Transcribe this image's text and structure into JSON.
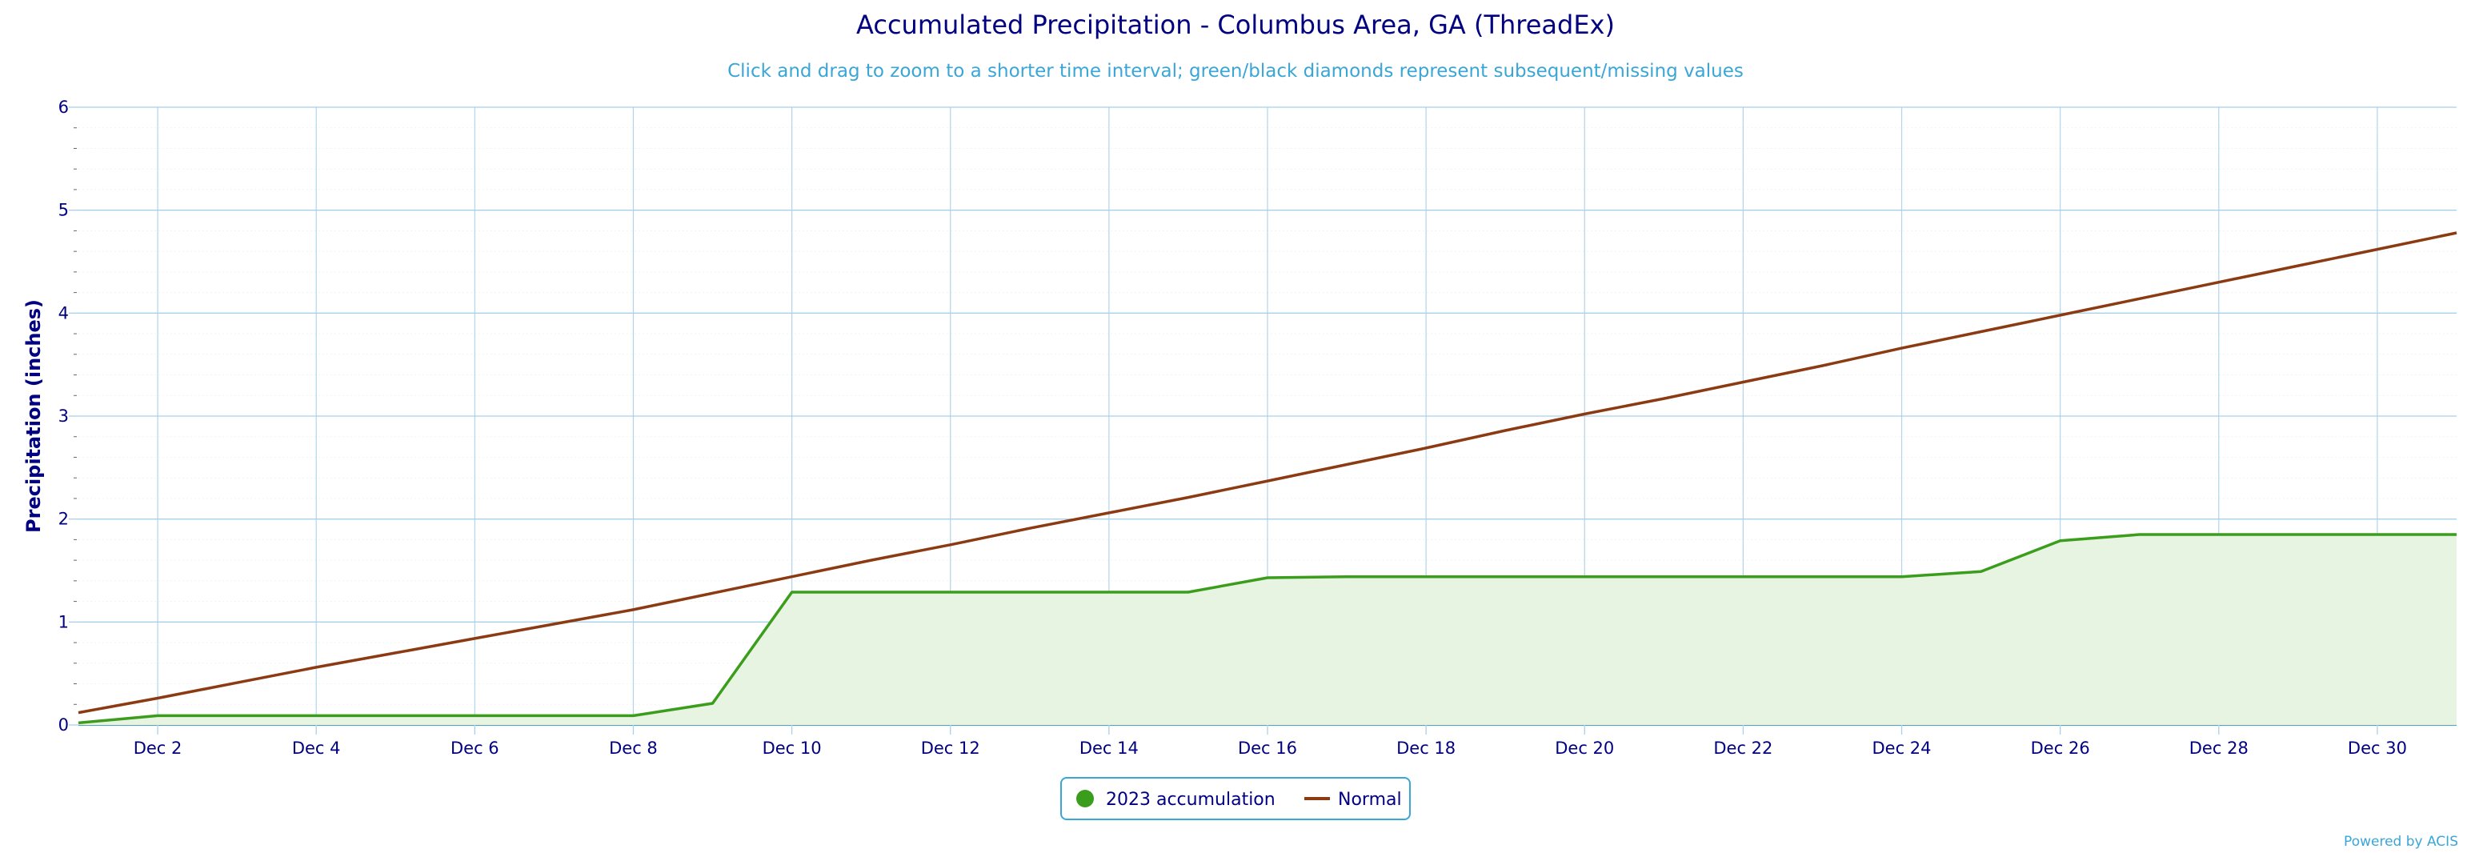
{
  "chart_data": {
    "type": "area",
    "title": "Accumulated Precipitation - Columbus Area, GA (ThreadEx)",
    "subtitle": "Click and drag to zoom to a shorter time interval; green/black diamonds represent subsequent/missing values",
    "xlabel": "",
    "ylabel": "Precipitation (inches)",
    "x": [
      1,
      2,
      3,
      4,
      5,
      6,
      7,
      8,
      9,
      10,
      11,
      12,
      13,
      14,
      15,
      16,
      17,
      18,
      19,
      20,
      21,
      22,
      23,
      24,
      25,
      26,
      27,
      28,
      29,
      30,
      31
    ],
    "xlim": [
      1,
      31
    ],
    "ylim": [
      0,
      6
    ],
    "y_ticks": [
      0,
      1,
      2,
      3,
      4,
      5,
      6
    ],
    "x_ticks": [
      {
        "x": 2,
        "label": "Dec 2"
      },
      {
        "x": 4,
        "label": "Dec 4"
      },
      {
        "x": 6,
        "label": "Dec 6"
      },
      {
        "x": 8,
        "label": "Dec 8"
      },
      {
        "x": 10,
        "label": "Dec 10"
      },
      {
        "x": 12,
        "label": "Dec 12"
      },
      {
        "x": 14,
        "label": "Dec 14"
      },
      {
        "x": 16,
        "label": "Dec 16"
      },
      {
        "x": 18,
        "label": "Dec 18"
      },
      {
        "x": 20,
        "label": "Dec 20"
      },
      {
        "x": 22,
        "label": "Dec 22"
      },
      {
        "x": 24,
        "label": "Dec 24"
      },
      {
        "x": 26,
        "label": "Dec 26"
      },
      {
        "x": 28,
        "label": "Dec 28"
      },
      {
        "x": 30,
        "label": "Dec 30"
      }
    ],
    "grid": true,
    "legend_position": "bottom-center",
    "series": [
      {
        "name": "2023 accumulation",
        "kind": "area",
        "color": "#3a9d1c",
        "fill": "#e8f4e2",
        "values": [
          0.02,
          0.09,
          0.09,
          0.09,
          0.09,
          0.09,
          0.09,
          0.09,
          0.21,
          1.29,
          1.29,
          1.29,
          1.29,
          1.29,
          1.29,
          1.43,
          1.44,
          1.44,
          1.44,
          1.44,
          1.44,
          1.44,
          1.44,
          1.44,
          1.49,
          1.79,
          1.85,
          1.85,
          1.85,
          1.85,
          1.85
        ]
      },
      {
        "name": "Normal",
        "kind": "line",
        "color": "#8b3a12",
        "values": [
          0.12,
          0.26,
          0.41,
          0.56,
          0.7,
          0.84,
          0.98,
          1.12,
          1.28,
          1.44,
          1.6,
          1.75,
          1.91,
          2.06,
          2.21,
          2.37,
          2.53,
          2.69,
          2.86,
          3.02,
          3.17,
          3.33,
          3.49,
          3.66,
          3.82,
          3.98,
          4.14,
          4.3,
          4.46,
          4.62,
          4.78
        ]
      }
    ]
  },
  "footer": {
    "credit": "Powered by ACIS"
  },
  "colors": {
    "title": "#000080",
    "subtitle": "#3aa6d6",
    "grid": "#a9d0ea",
    "axis": "#4aa3c9"
  }
}
